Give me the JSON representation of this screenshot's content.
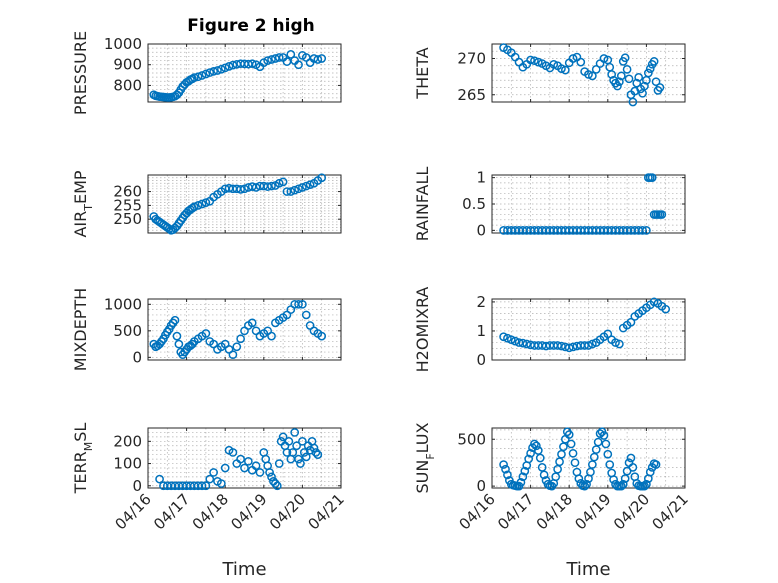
{
  "figure": {
    "title": "Figure 2 high",
    "xlabel": "Time",
    "x_tick_labels": [
      "04/16",
      "04/17",
      "04/18",
      "04/19",
      "04/20",
      "04/21"
    ],
    "marker_color": "#0072bd"
  },
  "chart_data": [
    {
      "type": "scatter",
      "ylabel_main": "PRESSURE",
      "ylabel_sub": "",
      "ylabel_tail": "",
      "ylim": [
        720,
        1000
      ],
      "yticks": [
        800,
        900,
        1000
      ],
      "xlim": [
        0,
        5
      ],
      "x": [
        0.15,
        0.2,
        0.25,
        0.3,
        0.35,
        0.4,
        0.45,
        0.5,
        0.55,
        0.6,
        0.65,
        0.7,
        0.75,
        0.8,
        0.85,
        0.9,
        0.95,
        1.0,
        1.05,
        1.1,
        1.15,
        1.2,
        1.3,
        1.4,
        1.5,
        1.6,
        1.7,
        1.8,
        1.9,
        2.0,
        2.1,
        2.2,
        2.3,
        2.4,
        2.5,
        2.6,
        2.7,
        2.8,
        2.9,
        3.0,
        3.1,
        3.2,
        3.3,
        3.4,
        3.5,
        3.6,
        3.7,
        3.8,
        3.9,
        4.0,
        4.1,
        4.2,
        4.3,
        4.4,
        4.5
      ],
      "y": [
        755,
        750,
        748,
        746,
        745,
        744,
        743,
        742,
        742,
        743,
        745,
        748,
        755,
        765,
        780,
        795,
        805,
        815,
        820,
        828,
        832,
        838,
        842,
        848,
        855,
        862,
        868,
        872,
        878,
        885,
        892,
        898,
        902,
        905,
        904,
        903,
        905,
        900,
        890,
        910,
        920,
        925,
        930,
        935,
        935,
        915,
        950,
        920,
        900,
        945,
        935,
        910,
        930,
        925,
        930
      ]
    },
    {
      "type": "scatter",
      "ylabel_main": "THETA",
      "ylabel_sub": "",
      "ylabel_tail": "",
      "ylim": [
        264,
        272
      ],
      "yticks": [
        265,
        270
      ],
      "xlim": [
        0,
        5
      ],
      "x": [
        0.3,
        0.4,
        0.5,
        0.6,
        0.7,
        0.8,
        0.9,
        1.0,
        1.1,
        1.2,
        1.3,
        1.4,
        1.5,
        1.6,
        1.7,
        1.8,
        1.9,
        2.0,
        2.1,
        2.2,
        2.3,
        2.4,
        2.5,
        2.6,
        2.7,
        2.8,
        2.9,
        3.0,
        3.05,
        3.1,
        3.15,
        3.2,
        3.25,
        3.3,
        3.35,
        3.4,
        3.45,
        3.5,
        3.55,
        3.6,
        3.65,
        3.7,
        3.75,
        3.8,
        3.85,
        3.9,
        3.95,
        4.0,
        4.05,
        4.1,
        4.15,
        4.2,
        4.25,
        4.3,
        4.35
      ],
      "y": [
        271.5,
        271.2,
        270.8,
        270.2,
        269.5,
        268.8,
        269.2,
        269.8,
        269.7,
        269.5,
        269.3,
        269.0,
        268.7,
        269.2,
        269.0,
        268.6,
        268.4,
        269.4,
        270.0,
        270.2,
        269.5,
        268.2,
        267.8,
        267.6,
        268.5,
        269.3,
        270.0,
        269.8,
        268.8,
        267.8,
        267.0,
        266.6,
        266.2,
        266.8,
        267.6,
        269.6,
        270.1,
        268.5,
        267.2,
        265.0,
        264.0,
        265.5,
        266.6,
        267.4,
        265.8,
        265.2,
        266.2,
        267.0,
        268.0,
        268.6,
        269.2,
        269.6,
        266.8,
        265.6,
        266.0
      ]
    },
    {
      "type": "scatter",
      "ylabel_main": "AIR",
      "ylabel_sub": "T",
      "ylabel_tail": "EMP",
      "ylim": [
        245,
        266
      ],
      "yticks": [
        250,
        255,
        260
      ],
      "xlim": [
        0,
        5
      ],
      "x": [
        0.15,
        0.2,
        0.25,
        0.3,
        0.35,
        0.4,
        0.45,
        0.5,
        0.55,
        0.6,
        0.65,
        0.7,
        0.75,
        0.8,
        0.85,
        0.9,
        0.95,
        1.0,
        1.05,
        1.1,
        1.15,
        1.2,
        1.3,
        1.4,
        1.5,
        1.6,
        1.7,
        1.8,
        1.9,
        2.0,
        2.1,
        2.2,
        2.3,
        2.4,
        2.5,
        2.6,
        2.7,
        2.8,
        2.9,
        3.0,
        3.1,
        3.2,
        3.3,
        3.4,
        3.5,
        3.6,
        3.7,
        3.8,
        3.9,
        4.0,
        4.1,
        4.2,
        4.3,
        4.4,
        4.5
      ],
      "y": [
        251,
        250,
        249.5,
        249,
        248.5,
        248,
        247.5,
        247,
        246.5,
        246,
        246.2,
        246.8,
        247.5,
        248.5,
        249.5,
        250.5,
        251.5,
        252.2,
        253,
        253.5,
        254,
        254.5,
        255,
        255.5,
        256,
        256.5,
        258,
        259,
        260,
        261,
        261.2,
        261,
        261,
        260.8,
        261,
        261.5,
        261.8,
        261.5,
        262,
        262,
        261.8,
        262,
        262.2,
        263,
        263.5,
        260,
        260,
        260.5,
        261,
        261.5,
        262,
        262.5,
        263,
        264,
        265
      ]
    },
    {
      "type": "scatter",
      "ylabel_main": "RAINFALL",
      "ylabel_sub": "",
      "ylabel_tail": "",
      "ylim": [
        -0.05,
        1.05
      ],
      "yticks": [
        0,
        0.5,
        1
      ],
      "xlim": [
        0,
        5
      ],
      "x": [
        0.3,
        0.4,
        0.5,
        0.6,
        0.7,
        0.8,
        0.9,
        1.0,
        1.1,
        1.2,
        1.3,
        1.4,
        1.5,
        1.6,
        1.7,
        1.8,
        1.9,
        2.0,
        2.1,
        2.2,
        2.3,
        2.4,
        2.5,
        2.6,
        2.7,
        2.8,
        2.9,
        3.0,
        3.1,
        3.2,
        3.3,
        3.4,
        3.5,
        3.6,
        3.7,
        3.8,
        3.9,
        4.0,
        4.05,
        4.1,
        4.15,
        4.2,
        4.25,
        4.3,
        4.35,
        4.4
      ],
      "y": [
        0,
        0,
        0,
        0,
        0,
        0,
        0,
        0,
        0,
        0,
        0,
        0,
        0,
        0,
        0,
        0,
        0,
        0,
        0,
        0,
        0,
        0,
        0,
        0,
        0,
        0,
        0,
        0,
        0,
        0,
        0,
        0,
        0,
        0,
        0,
        0,
        0,
        0,
        1,
        1,
        1,
        0.3,
        0.3,
        0.3,
        0.3,
        0.3
      ]
    },
    {
      "type": "scatter",
      "ylabel_main": "MIXDEPTH",
      "ylabel_sub": "",
      "ylabel_tail": "",
      "ylim": [
        -50,
        1100
      ],
      "yticks": [
        0,
        500,
        1000
      ],
      "xlim": [
        0,
        5
      ],
      "x": [
        0.15,
        0.2,
        0.25,
        0.3,
        0.35,
        0.4,
        0.45,
        0.5,
        0.55,
        0.6,
        0.65,
        0.7,
        0.75,
        0.8,
        0.85,
        0.9,
        0.95,
        1.0,
        1.05,
        1.1,
        1.15,
        1.2,
        1.3,
        1.4,
        1.5,
        1.6,
        1.7,
        1.8,
        1.9,
        2.0,
        2.1,
        2.2,
        2.3,
        2.4,
        2.5,
        2.6,
        2.7,
        2.8,
        2.9,
        3.0,
        3.1,
        3.2,
        3.3,
        3.4,
        3.5,
        3.6,
        3.7,
        3.8,
        3.9,
        4.0,
        4.1,
        4.2,
        4.3,
        4.4,
        4.5
      ],
      "y": [
        250,
        200,
        220,
        250,
        300,
        350,
        420,
        480,
        530,
        600,
        650,
        700,
        400,
        250,
        100,
        50,
        100,
        150,
        200,
        220,
        250,
        300,
        350,
        400,
        450,
        300,
        250,
        150,
        200,
        250,
        150,
        50,
        200,
        350,
        500,
        600,
        650,
        500,
        400,
        450,
        500,
        400,
        650,
        700,
        750,
        800,
        900,
        1000,
        1000,
        1000,
        800,
        600,
        500,
        450,
        400
      ]
    },
    {
      "type": "scatter",
      "ylabel_main": "H2OMIXRA",
      "ylabel_sub": "",
      "ylabel_tail": "",
      "ylim": [
        0,
        2.1
      ],
      "yticks": [
        0,
        1,
        2
      ],
      "xlim": [
        0,
        5
      ],
      "x": [
        0.3,
        0.4,
        0.5,
        0.6,
        0.7,
        0.8,
        0.9,
        1.0,
        1.1,
        1.2,
        1.3,
        1.4,
        1.5,
        1.6,
        1.7,
        1.8,
        1.9,
        2.0,
        2.1,
        2.2,
        2.3,
        2.4,
        2.5,
        2.6,
        2.7,
        2.8,
        2.9,
        3.0,
        3.1,
        3.2,
        3.3,
        3.4,
        3.5,
        3.6,
        3.7,
        3.8,
        3.9,
        4.0,
        4.1,
        4.2,
        4.3,
        4.4,
        4.5
      ],
      "y": [
        0.8,
        0.75,
        0.7,
        0.65,
        0.6,
        0.58,
        0.55,
        0.52,
        0.5,
        0.5,
        0.5,
        0.48,
        0.5,
        0.5,
        0.5,
        0.48,
        0.45,
        0.42,
        0.45,
        0.48,
        0.5,
        0.5,
        0.5,
        0.55,
        0.6,
        0.7,
        0.8,
        0.9,
        0.7,
        0.6,
        0.55,
        1.1,
        1.2,
        1.3,
        1.5,
        1.6,
        1.7,
        1.8,
        1.9,
        2.0,
        1.95,
        1.85,
        1.75
      ]
    },
    {
      "type": "scatter",
      "ylabel_main": "TERR",
      "ylabel_sub": "M",
      "ylabel_tail": "SL",
      "ylim": [
        -10,
        260
      ],
      "yticks": [
        0,
        100,
        200
      ],
      "xlim": [
        0,
        5
      ],
      "x": [
        0.3,
        0.4,
        0.5,
        0.6,
        0.7,
        0.8,
        0.9,
        1.0,
        1.1,
        1.2,
        1.3,
        1.4,
        1.5,
        1.6,
        1.7,
        1.8,
        1.9,
        2.0,
        2.1,
        2.2,
        2.3,
        2.4,
        2.5,
        2.6,
        2.7,
        2.8,
        2.9,
        3.0,
        3.05,
        3.1,
        3.15,
        3.2,
        3.25,
        3.3,
        3.35,
        3.4,
        3.45,
        3.5,
        3.55,
        3.6,
        3.65,
        3.7,
        3.75,
        3.8,
        3.85,
        3.9,
        3.95,
        4.0,
        4.05,
        4.1,
        4.15,
        4.2,
        4.25,
        4.3,
        4.35,
        4.4
      ],
      "y": [
        30,
        0,
        0,
        0,
        0,
        0,
        0,
        0,
        0,
        0,
        0,
        0,
        0,
        30,
        60,
        20,
        10,
        80,
        160,
        150,
        100,
        120,
        80,
        110,
        70,
        90,
        60,
        150,
        120,
        90,
        60,
        40,
        20,
        10,
        0,
        100,
        200,
        220,
        180,
        150,
        200,
        120,
        150,
        240,
        180,
        120,
        100,
        200,
        150,
        130,
        180,
        160,
        200,
        170,
        150,
        140
      ]
    },
    {
      "type": "scatter",
      "ylabel_main": "SUN",
      "ylabel_sub": "F",
      "ylabel_tail": "LUX",
      "ylim": [
        -20,
        620
      ],
      "yticks": [
        0,
        500
      ],
      "xlim": [
        0,
        5
      ],
      "x": [
        0.3,
        0.35,
        0.4,
        0.45,
        0.5,
        0.55,
        0.6,
        0.65,
        0.7,
        0.75,
        0.8,
        0.85,
        0.9,
        0.95,
        1.0,
        1.05,
        1.1,
        1.15,
        1.2,
        1.25,
        1.3,
        1.35,
        1.4,
        1.45,
        1.5,
        1.55,
        1.6,
        1.65,
        1.7,
        1.75,
        1.8,
        1.85,
        1.9,
        1.95,
        2.0,
        2.05,
        2.1,
        2.15,
        2.2,
        2.25,
        2.3,
        2.35,
        2.4,
        2.45,
        2.5,
        2.55,
        2.6,
        2.65,
        2.7,
        2.75,
        2.8,
        2.85,
        2.9,
        2.95,
        3.0,
        3.05,
        3.1,
        3.15,
        3.2,
        3.25,
        3.3,
        3.35,
        3.4,
        3.45,
        3.5,
        3.55,
        3.6,
        3.65,
        3.7,
        3.75,
        3.8,
        3.85,
        3.9,
        3.95,
        4.0,
        4.05,
        4.1,
        4.15,
        4.2,
        4.25
      ],
      "y": [
        230,
        180,
        120,
        60,
        20,
        10,
        5,
        0,
        0,
        40,
        100,
        160,
        220,
        290,
        350,
        410,
        450,
        430,
        380,
        300,
        200,
        120,
        60,
        20,
        5,
        0,
        30,
        100,
        180,
        260,
        340,
        420,
        500,
        580,
        550,
        450,
        350,
        250,
        150,
        80,
        30,
        5,
        0,
        20,
        80,
        150,
        230,
        310,
        390,
        470,
        560,
        580,
        540,
        450,
        340,
        230,
        140,
        70,
        20,
        0,
        0,
        0,
        20,
        80,
        160,
        250,
        300,
        200,
        100,
        30,
        5,
        0,
        0,
        0,
        20,
        80,
        150,
        200,
        240,
        230
      ]
    }
  ]
}
